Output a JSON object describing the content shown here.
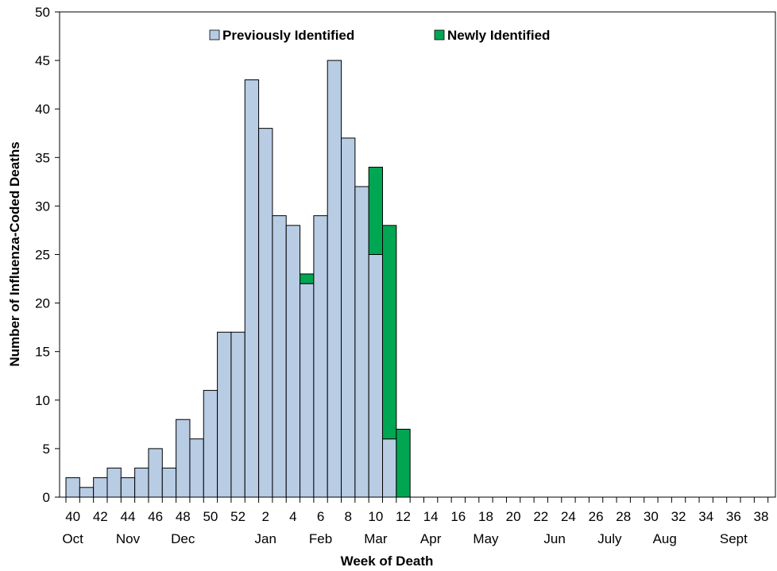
{
  "chart_data": {
    "type": "bar",
    "stacked": true,
    "xlabel": "Week of Death",
    "ylabel": "Number of Influenza-Coded Deaths",
    "ylim": [
      0,
      50
    ],
    "yticks": [
      0,
      5,
      10,
      15,
      20,
      25,
      30,
      35,
      40,
      45,
      50
    ],
    "grid": false,
    "legend_position": "top-center",
    "categories": [
      "40",
      "41",
      "42",
      "43",
      "44",
      "45",
      "46",
      "47",
      "48",
      "49",
      "50",
      "51",
      "52",
      "1",
      "2",
      "3",
      "4",
      "5",
      "6",
      "7",
      "8",
      "9",
      "10",
      "11",
      "12",
      "13",
      "14",
      "15",
      "16",
      "17",
      "18",
      "19",
      "20",
      "21",
      "22",
      "23",
      "24",
      "25",
      "26",
      "27",
      "28",
      "29",
      "30",
      "31",
      "32",
      "33",
      "34",
      "35",
      "36",
      "37",
      "38",
      "39"
    ],
    "week_tick_labels": [
      "40",
      "42",
      "44",
      "46",
      "48",
      "50",
      "52",
      "2",
      "4",
      "6",
      "8",
      "10",
      "12",
      "14",
      "16",
      "18",
      "20",
      "22",
      "24",
      "26",
      "28",
      "30",
      "32",
      "34",
      "36",
      "38"
    ],
    "month_labels": [
      {
        "label": "Oct",
        "at_week": "40"
      },
      {
        "label": "Nov",
        "at_week": "44"
      },
      {
        "label": "Dec",
        "at_week": "48"
      },
      {
        "label": "Jan",
        "at_week": "2"
      },
      {
        "label": "Feb",
        "at_week": "6"
      },
      {
        "label": "Mar",
        "at_week": "10"
      },
      {
        "label": "Apr",
        "at_week": "14"
      },
      {
        "label": "May",
        "at_week": "18"
      },
      {
        "label": "Jun",
        "at_week": "23"
      },
      {
        "label": "July",
        "at_week": "27"
      },
      {
        "label": "Aug",
        "at_week": "31"
      },
      {
        "label": "Sept",
        "at_week": "36"
      }
    ],
    "series": [
      {
        "name": "Previously Identified",
        "color": "#b8cce4",
        "values": [
          2,
          1,
          2,
          3,
          2,
          3,
          5,
          3,
          8,
          6,
          11,
          17,
          17,
          43,
          38,
          29,
          28,
          22,
          29,
          45,
          37,
          32,
          25,
          6,
          0,
          0,
          0,
          0,
          0,
          0,
          0,
          0,
          0,
          0,
          0,
          0,
          0,
          0,
          0,
          0,
          0,
          0,
          0,
          0,
          0,
          0,
          0,
          0,
          0,
          0,
          0,
          0
        ]
      },
      {
        "name": "Newly Identified",
        "color": "#00a651",
        "values": [
          0,
          0,
          0,
          0,
          0,
          0,
          0,
          0,
          0,
          0,
          0,
          0,
          0,
          0,
          0,
          0,
          0,
          1,
          0,
          0,
          0,
          0,
          9,
          22,
          7,
          0,
          0,
          0,
          0,
          0,
          0,
          0,
          0,
          0,
          0,
          0,
          0,
          0,
          0,
          0,
          0,
          0,
          0,
          0,
          0,
          0,
          0,
          0,
          0,
          0,
          0,
          0
        ]
      }
    ]
  }
}
